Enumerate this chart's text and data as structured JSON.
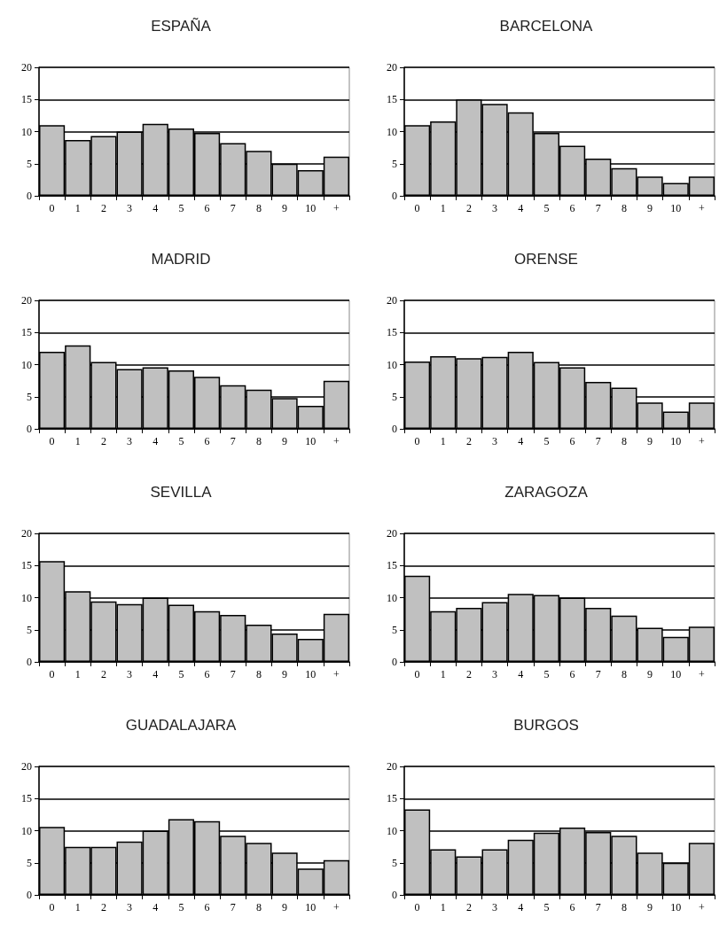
{
  "chart_data": [
    {
      "type": "bar",
      "title": "ESPAÑA",
      "categories": [
        "0",
        "1",
        "2",
        "3",
        "4",
        "5",
        "6",
        "7",
        "8",
        "9",
        "10",
        "+"
      ],
      "values": [
        11,
        8.7,
        9.3,
        10,
        11.2,
        10.5,
        9.8,
        8.2,
        7,
        5,
        4,
        6.1
      ],
      "color": "#c0c0c0",
      "ylim": [
        0,
        20
      ],
      "yticks": [
        0,
        5,
        10,
        15,
        20
      ],
      "grid": "y"
    },
    {
      "type": "bar",
      "title": "BARCELONA",
      "categories": [
        "0",
        "1",
        "2",
        "3",
        "4",
        "5",
        "6",
        "7",
        "8",
        "9",
        "10",
        "+"
      ],
      "values": [
        11,
        11.6,
        15,
        14.3,
        13,
        9.8,
        7.8,
        5.8,
        4.3,
        3,
        2,
        3
      ],
      "color": "#c0c0c0",
      "ylim": [
        0,
        20
      ],
      "yticks": [
        0,
        5,
        10,
        15,
        20
      ],
      "grid": "y"
    },
    {
      "type": "bar",
      "title": "MADRID",
      "categories": [
        "0",
        "1",
        "2",
        "3",
        "4",
        "5",
        "6",
        "7",
        "8",
        "9",
        "10",
        "+"
      ],
      "values": [
        12,
        13,
        10.4,
        9.3,
        9.6,
        9.1,
        8.1,
        6.8,
        6.1,
        4.8,
        3.6,
        7.5
      ],
      "color": "#c0c0c0",
      "ylim": [
        0,
        20
      ],
      "yticks": [
        0,
        5,
        10,
        15,
        20
      ],
      "grid": "y"
    },
    {
      "type": "bar",
      "title": "ORENSE",
      "categories": [
        "0",
        "1",
        "2",
        "3",
        "4",
        "5",
        "6",
        "7",
        "8",
        "9",
        "10",
        "+"
      ],
      "values": [
        10.5,
        11.3,
        11,
        11.2,
        12,
        10.4,
        9.6,
        7.3,
        6.4,
        4.1,
        2.7,
        4.1
      ],
      "color": "#c0c0c0",
      "ylim": [
        0,
        20
      ],
      "yticks": [
        0,
        5,
        10,
        15,
        20
      ],
      "grid": "y"
    },
    {
      "type": "bar",
      "title": "SEVILLA",
      "categories": [
        "0",
        "1",
        "2",
        "3",
        "4",
        "5",
        "6",
        "7",
        "8",
        "9",
        "10",
        "+"
      ],
      "values": [
        15.7,
        11,
        9.4,
        9,
        10,
        8.9,
        7.9,
        7.3,
        5.8,
        4.4,
        3.6,
        7.5
      ],
      "color": "#c0c0c0",
      "ylim": [
        0,
        20
      ],
      "yticks": [
        0,
        5,
        10,
        15,
        20
      ],
      "grid": "y"
    },
    {
      "type": "bar",
      "title": "ZARAGOZA",
      "categories": [
        "0",
        "1",
        "2",
        "3",
        "4",
        "5",
        "6",
        "7",
        "8",
        "9",
        "10",
        "+"
      ],
      "values": [
        13.4,
        7.9,
        8.4,
        9.3,
        10.6,
        10.4,
        10,
        8.4,
        7.2,
        5.3,
        3.9,
        5.5
      ],
      "color": "#c0c0c0",
      "ylim": [
        0,
        20
      ],
      "yticks": [
        0,
        5,
        10,
        15,
        20
      ],
      "grid": "y"
    },
    {
      "type": "bar",
      "title": "GUADALAJARA",
      "categories": [
        "0",
        "1",
        "2",
        "3",
        "4",
        "5",
        "6",
        "7",
        "8",
        "9",
        "10",
        "+"
      ],
      "values": [
        10.6,
        7.5,
        7.5,
        8.3,
        10,
        11.8,
        11.5,
        9.2,
        8.1,
        6.6,
        4.1,
        5.4
      ],
      "color": "#c0c0c0",
      "ylim": [
        0,
        20
      ],
      "yticks": [
        0,
        5,
        10,
        15,
        20
      ],
      "grid": "y"
    },
    {
      "type": "bar",
      "title": "BURGOS",
      "categories": [
        "0",
        "1",
        "2",
        "3",
        "4",
        "5",
        "6",
        "7",
        "8",
        "9",
        "10",
        "+"
      ],
      "values": [
        13.3,
        7.1,
        6,
        7.1,
        8.6,
        9.7,
        10.5,
        9.8,
        9.2,
        6.6,
        5,
        8.1
      ],
      "color": "#c0c0c0",
      "ylim": [
        0,
        20
      ],
      "yticks": [
        0,
        5,
        10,
        15,
        20
      ],
      "grid": "y"
    }
  ]
}
